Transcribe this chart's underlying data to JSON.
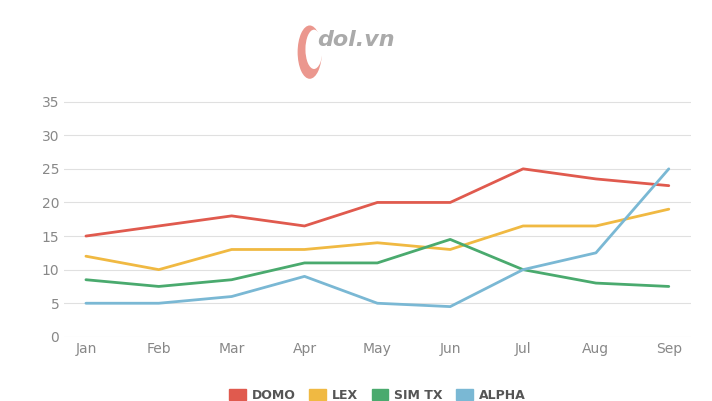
{
  "months": [
    "Jan",
    "Feb",
    "Mar",
    "Apr",
    "May",
    "Jun",
    "Jul",
    "Aug",
    "Sep"
  ],
  "series": {
    "DOMO": [
      15,
      16.5,
      18,
      16.5,
      20,
      20,
      25,
      23.5,
      22.5
    ],
    "LEX": [
      12,
      10,
      13,
      13,
      14,
      13,
      16.5,
      16.5,
      19
    ],
    "SIM TX": [
      8.5,
      7.5,
      8.5,
      11,
      11,
      14.5,
      10,
      8,
      7.5
    ],
    "ALPHA": [
      5,
      5,
      6,
      9,
      5,
      4.5,
      10,
      12.5,
      25
    ]
  },
  "colors": {
    "DOMO": "#e05a4e",
    "LEX": "#f0b942",
    "SIM TX": "#4aaa6e",
    "ALPHA": "#7ab8d4"
  },
  "ylim": [
    0,
    37
  ],
  "yticks": [
    0,
    5,
    10,
    15,
    20,
    25,
    30,
    35
  ],
  "grid_color": "#e0e0e0",
  "bg_color": "#ffffff",
  "outer_bg": "#f5f5f5",
  "line_width": 2.0,
  "legend_order": [
    "DOMO",
    "LEX",
    "SIM TX",
    "ALPHA"
  ],
  "tick_color": "#888888",
  "tick_fontsize": 10
}
